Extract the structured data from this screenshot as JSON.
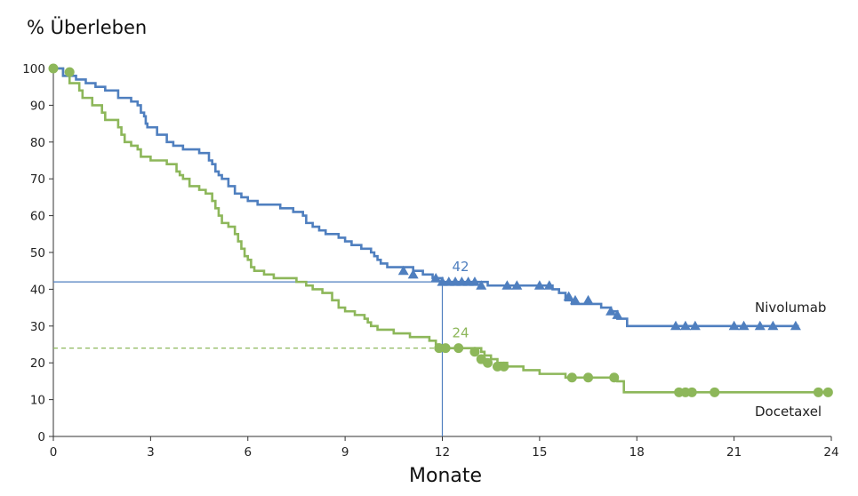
{
  "chart_data": {
    "type": "line",
    "subtype": "kaplan-meier",
    "ylabel": "% Überleben",
    "xlabel": "Monate",
    "xlim": [
      0,
      24
    ],
    "ylim": [
      0,
      100
    ],
    "xticks": [
      0,
      3,
      6,
      9,
      12,
      15,
      18,
      21,
      24
    ],
    "yticks": [
      0,
      10,
      20,
      30,
      40,
      50,
      60,
      70,
      80,
      90,
      100
    ],
    "xtick_labels": [
      "0",
      "3",
      "6",
      "9",
      "12",
      "15",
      "18",
      "21",
      "24"
    ],
    "ytick_labels": [
      "0",
      "10",
      "20",
      "30",
      "40",
      "50",
      "60",
      "70",
      "80",
      "90",
      "100"
    ],
    "series": [
      {
        "name": "Nivolumab",
        "color": "#4f7fbf",
        "marker": "triangle",
        "steps": [
          [
            0,
            100
          ],
          [
            0.3,
            98
          ],
          [
            0.7,
            97
          ],
          [
            1.0,
            96
          ],
          [
            1.3,
            95
          ],
          [
            1.6,
            94
          ],
          [
            2.0,
            92
          ],
          [
            2.4,
            91
          ],
          [
            2.6,
            90
          ],
          [
            2.7,
            88
          ],
          [
            2.8,
            87
          ],
          [
            2.85,
            85
          ],
          [
            2.9,
            84
          ],
          [
            3.2,
            82
          ],
          [
            3.5,
            80
          ],
          [
            3.7,
            79
          ],
          [
            4.0,
            78
          ],
          [
            4.5,
            77
          ],
          [
            4.8,
            75
          ],
          [
            4.9,
            74
          ],
          [
            5.0,
            72
          ],
          [
            5.1,
            71
          ],
          [
            5.2,
            70
          ],
          [
            5.4,
            68
          ],
          [
            5.6,
            66
          ],
          [
            5.8,
            65
          ],
          [
            6.0,
            64
          ],
          [
            6.3,
            63
          ],
          [
            7.0,
            62
          ],
          [
            7.4,
            61
          ],
          [
            7.7,
            60
          ],
          [
            7.8,
            58
          ],
          [
            8.0,
            57
          ],
          [
            8.2,
            56
          ],
          [
            8.4,
            55
          ],
          [
            8.8,
            54
          ],
          [
            9.0,
            53
          ],
          [
            9.2,
            52
          ],
          [
            9.5,
            51
          ],
          [
            9.8,
            50
          ],
          [
            9.9,
            49
          ],
          [
            10.0,
            48
          ],
          [
            10.1,
            47
          ],
          [
            10.3,
            46
          ],
          [
            11.1,
            45
          ],
          [
            11.4,
            44
          ],
          [
            11.7,
            43
          ],
          [
            12.0,
            42
          ],
          [
            13.4,
            41
          ],
          [
            15.4,
            40
          ],
          [
            15.6,
            39
          ],
          [
            15.8,
            37
          ],
          [
            16.0,
            36
          ],
          [
            16.9,
            35
          ],
          [
            17.2,
            34
          ],
          [
            17.4,
            32
          ],
          [
            17.7,
            30
          ],
          [
            23.0,
            30
          ]
        ],
        "censored": [
          [
            10.8,
            45
          ],
          [
            11.1,
            44
          ],
          [
            11.8,
            43
          ],
          [
            12.0,
            42
          ],
          [
            12.2,
            42
          ],
          [
            12.4,
            42
          ],
          [
            12.6,
            42
          ],
          [
            12.8,
            42
          ],
          [
            13.0,
            42
          ],
          [
            13.2,
            41
          ],
          [
            14.0,
            41
          ],
          [
            14.3,
            41
          ],
          [
            15.0,
            41
          ],
          [
            15.3,
            41
          ],
          [
            15.9,
            38
          ],
          [
            16.1,
            37
          ],
          [
            16.5,
            37
          ],
          [
            17.2,
            34
          ],
          [
            17.4,
            33
          ],
          [
            19.2,
            30
          ],
          [
            19.5,
            30
          ],
          [
            19.8,
            30
          ],
          [
            21.0,
            30
          ],
          [
            21.3,
            30
          ],
          [
            21.8,
            30
          ],
          [
            22.2,
            30
          ],
          [
            22.9,
            30
          ]
        ],
        "median_marker": {
          "x": 12,
          "y": 42,
          "label": "42"
        }
      },
      {
        "name": "Docetaxel",
        "color": "#8db75a",
        "marker": "circle",
        "steps": [
          [
            0,
            100
          ],
          [
            0.3,
            98
          ],
          [
            0.5,
            96
          ],
          [
            0.8,
            94
          ],
          [
            0.9,
            92
          ],
          [
            1.2,
            90
          ],
          [
            1.5,
            88
          ],
          [
            1.6,
            86
          ],
          [
            2.0,
            84
          ],
          [
            2.1,
            82
          ],
          [
            2.2,
            80
          ],
          [
            2.4,
            79
          ],
          [
            2.6,
            78
          ],
          [
            2.7,
            76
          ],
          [
            3.0,
            75
          ],
          [
            3.5,
            74
          ],
          [
            3.8,
            72
          ],
          [
            3.9,
            71
          ],
          [
            4.0,
            70
          ],
          [
            4.2,
            68
          ],
          [
            4.5,
            67
          ],
          [
            4.7,
            66
          ],
          [
            4.9,
            64
          ],
          [
            5.0,
            62
          ],
          [
            5.1,
            60
          ],
          [
            5.2,
            58
          ],
          [
            5.4,
            57
          ],
          [
            5.6,
            55
          ],
          [
            5.7,
            53
          ],
          [
            5.8,
            51
          ],
          [
            5.9,
            49
          ],
          [
            6.0,
            48
          ],
          [
            6.1,
            46
          ],
          [
            6.2,
            45
          ],
          [
            6.5,
            44
          ],
          [
            6.8,
            43
          ],
          [
            7.5,
            42
          ],
          [
            7.8,
            41
          ],
          [
            8.0,
            40
          ],
          [
            8.3,
            39
          ],
          [
            8.6,
            37
          ],
          [
            8.8,
            35
          ],
          [
            9.0,
            34
          ],
          [
            9.3,
            33
          ],
          [
            9.6,
            32
          ],
          [
            9.7,
            31
          ],
          [
            9.8,
            30
          ],
          [
            10.0,
            29
          ],
          [
            10.5,
            28
          ],
          [
            11.0,
            27
          ],
          [
            11.6,
            26
          ],
          [
            11.8,
            25
          ],
          [
            11.9,
            24
          ],
          [
            13.2,
            23
          ],
          [
            13.3,
            22
          ],
          [
            13.5,
            21
          ],
          [
            13.7,
            20
          ],
          [
            14.0,
            19
          ],
          [
            14.5,
            18
          ],
          [
            15.0,
            17
          ],
          [
            15.8,
            16
          ],
          [
            17.0,
            16
          ],
          [
            17.4,
            15
          ],
          [
            17.6,
            12
          ],
          [
            23.8,
            12
          ]
        ],
        "censored": [
          [
            0,
            100
          ],
          [
            0.5,
            99
          ],
          [
            11.9,
            24
          ],
          [
            12.1,
            24
          ],
          [
            12.5,
            24
          ],
          [
            13.0,
            23
          ],
          [
            13.2,
            21
          ],
          [
            13.4,
            20
          ],
          [
            13.7,
            19
          ],
          [
            13.9,
            19
          ],
          [
            16.0,
            16
          ],
          [
            16.5,
            16
          ],
          [
            17.3,
            16
          ],
          [
            19.3,
            12
          ],
          [
            19.5,
            12
          ],
          [
            19.7,
            12
          ],
          [
            20.4,
            12
          ],
          [
            23.6,
            12
          ],
          [
            23.9,
            12
          ]
        ],
        "median_marker": {
          "x": 12,
          "y": 24,
          "label": "24"
        }
      }
    ],
    "reference_lines": [
      {
        "series": "Nivolumab",
        "y": 42,
        "x": 12,
        "style": "solid"
      },
      {
        "series": "Docetaxel",
        "y": 24,
        "x": 12,
        "style": "dashed"
      }
    ]
  }
}
